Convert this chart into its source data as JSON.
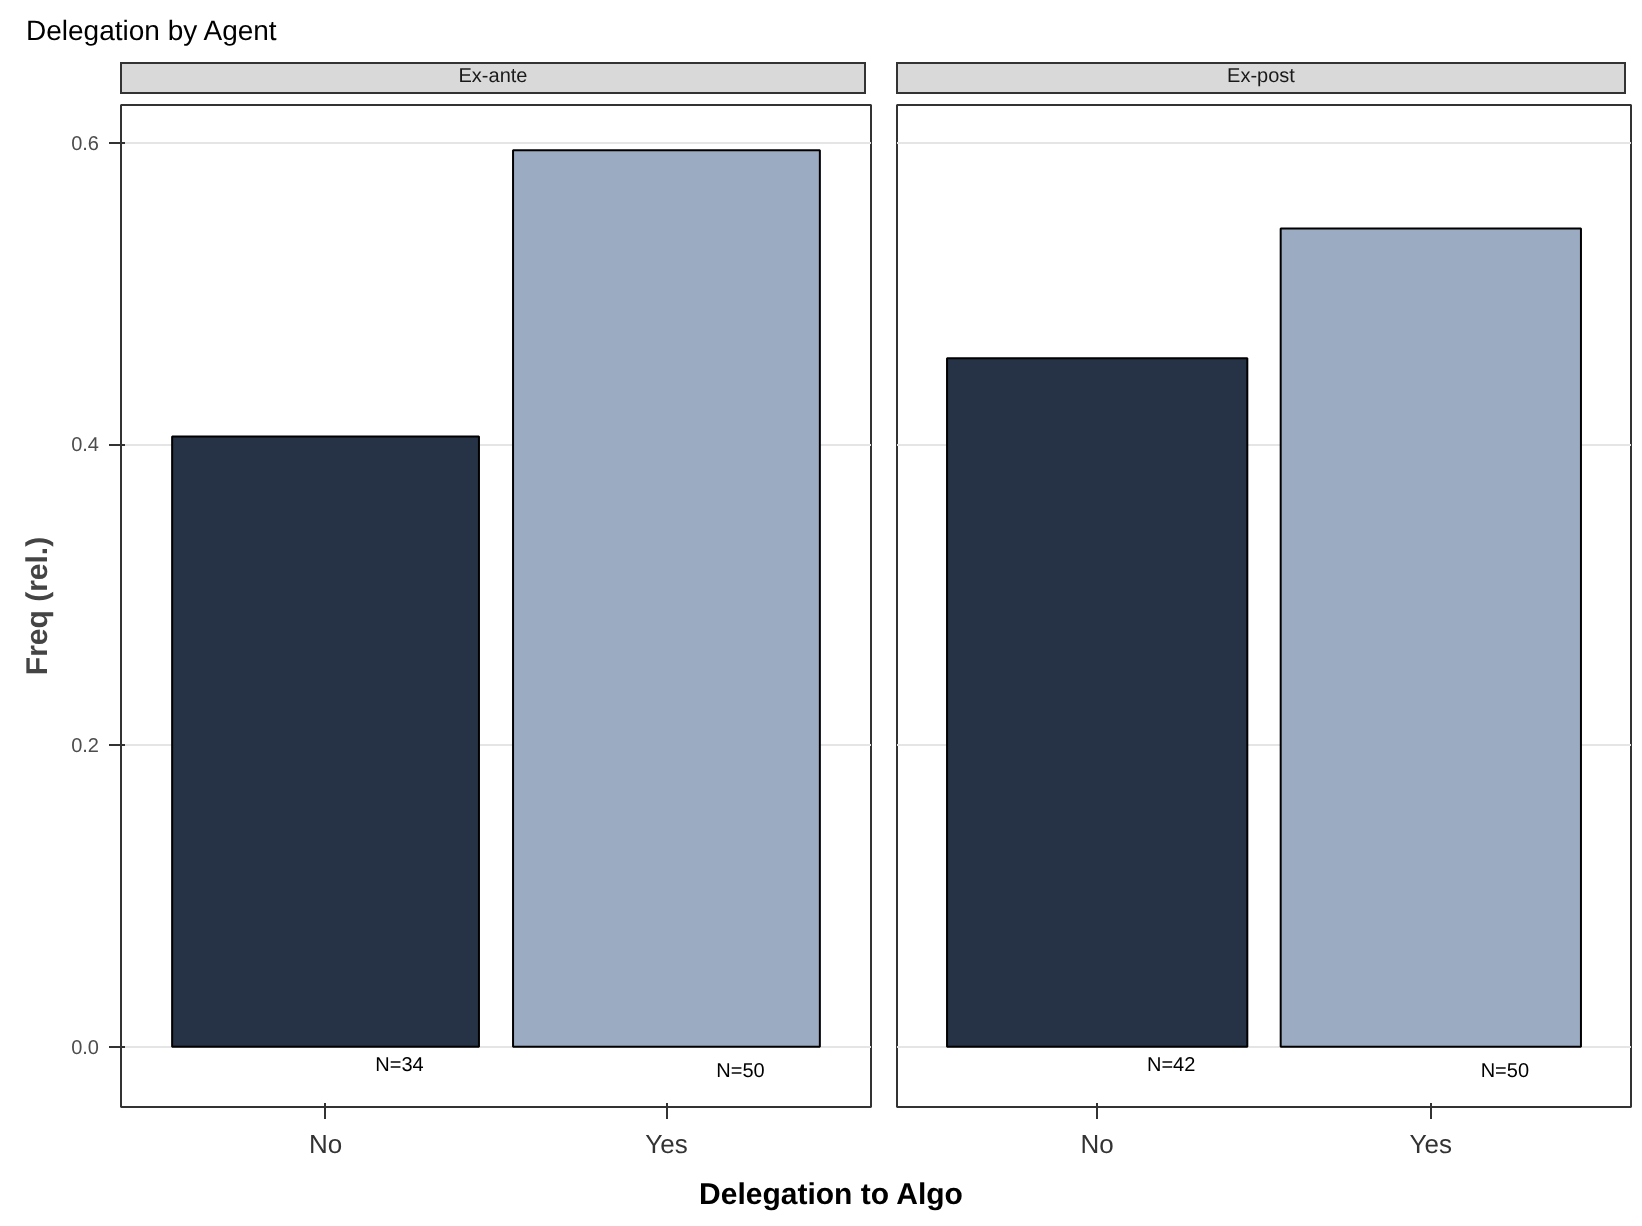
{
  "chart_data": [
    {
      "type": "bar",
      "title": "Delegation by Agent",
      "subtitle": "Ex-ante",
      "xlabel": "Delegation to Algo",
      "ylabel": "Freq (rel.)",
      "categories": [
        "No",
        "Yes"
      ],
      "values": [
        0.405,
        0.595
      ],
      "colors": [
        "#263245",
        "#9aabc2"
      ],
      "ylim": [
        -0.04,
        0.625
      ],
      "yticks": [
        {
          "value": 0,
          "label": "0.0"
        },
        0.2,
        0.4,
        0.6
      ],
      "grid": "y",
      "annotations": [
        "N=34",
        "N=50"
      ]
    },
    {
      "type": "bar",
      "subtitle": "Ex-post",
      "categories": [
        "No",
        "Yes"
      ],
      "values": [
        0.457,
        0.543
      ],
      "colors": [
        "#263245",
        "#9aabc2"
      ],
      "ylim": [
        -0.04,
        0.625
      ],
      "yticks": [
        {
          "value": 0,
          "label": null
        },
        {
          "value": 0.2,
          "label": null
        },
        {
          "value": 0.4,
          "label": null
        },
        {
          "value": 0.6,
          "label": null
        }
      ],
      "grid": "y",
      "tick_labels": "x",
      "annotations": [
        "N=42",
        "N=50"
      ]
    }
  ]
}
